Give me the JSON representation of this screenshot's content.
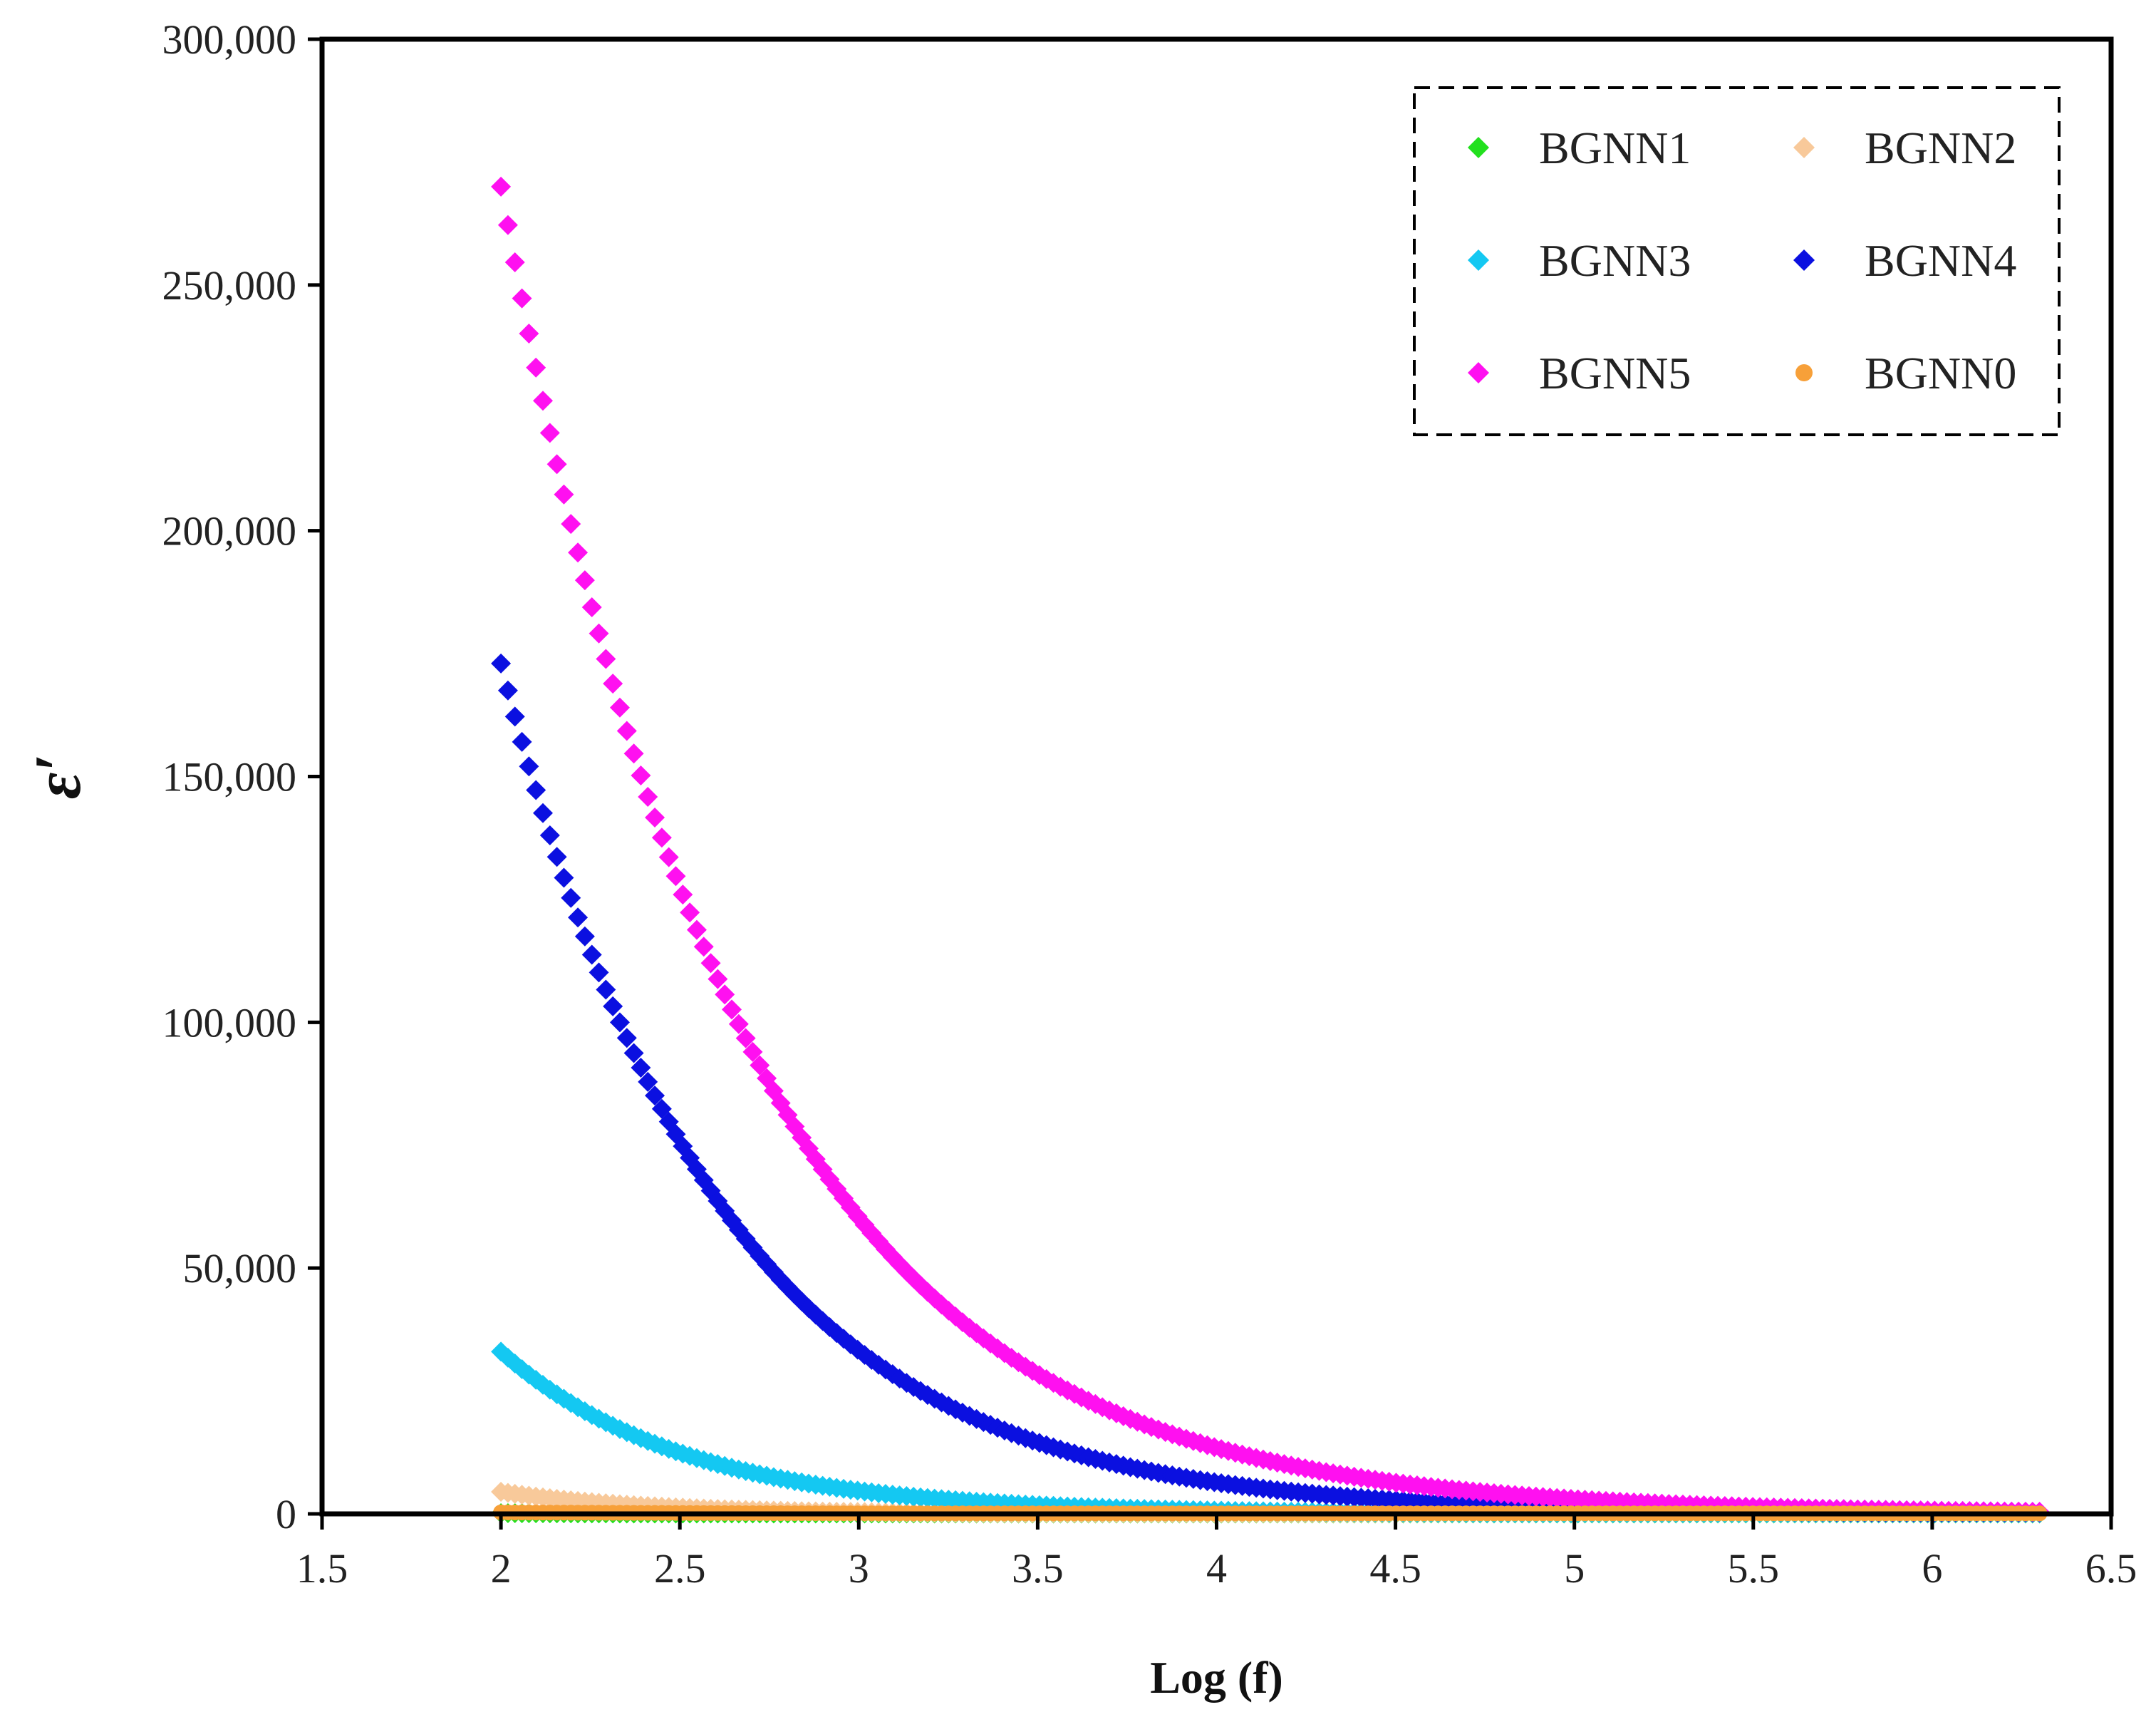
{
  "chart_data": {
    "type": "scatter",
    "title": "",
    "xlabel": "Log (f)",
    "ylabel": "ε′",
    "xlim": [
      1.5,
      6.5
    ],
    "ylim": [
      0,
      300000
    ],
    "x_ticks": [
      "1.5",
      "2",
      "2.5",
      "3",
      "3.5",
      "4",
      "4.5",
      "5",
      "5.5",
      "6",
      "6.5"
    ],
    "y_ticks": [
      "0",
      "50,000",
      "100,000",
      "150,000",
      "200,000",
      "250,000",
      "300,000"
    ],
    "grid": false,
    "legend_position": "top-right",
    "x_range": [
      2.0,
      6.3
    ],
    "series": [
      {
        "name": "BGNN1",
        "color": "#22e01e",
        "marker": "diamond",
        "x_start": 2.0,
        "x_end": 6.3,
        "start_value": 150,
        "decay_per_decade": 2.0,
        "floor": 80
      },
      {
        "name": "BGNN2",
        "color": "#f8c99a",
        "marker": "diamond",
        "x_start": 2.0,
        "x_end": 6.3,
        "start_value": 4500,
        "decay_per_decade": 2.5,
        "floor": 150
      },
      {
        "name": "BGNN3",
        "color": "#14c8f2",
        "marker": "diamond",
        "x_start": 2.0,
        "x_end": 6.3,
        "start_value": 33000,
        "decay_per_decade": 1.95,
        "floor": 150
      },
      {
        "name": "BGNN4",
        "color": "#0b10e0",
        "marker": "diamond",
        "x_start": 2.0,
        "x_end": 6.3,
        "start_value": 173000,
        "decay_per_decade": 1.65,
        "floor": 300
      },
      {
        "name": "BGNN5",
        "color": "#ff10f0",
        "marker": "diamond",
        "x_start": 2.0,
        "x_end": 6.3,
        "start_value": 270000,
        "decay_per_decade": 1.5,
        "floor": 300
      },
      {
        "name": "BGNN0",
        "color": "#f7a039",
        "marker": "circle",
        "x_start": 2.0,
        "x_end": 6.3,
        "start_value": 300,
        "decay_per_decade": 1.0,
        "floor": 100
      }
    ],
    "legend_order": [
      "BGNN1",
      "BGNN2",
      "BGNN3",
      "BGNN4",
      "BGNN5",
      "BGNN0"
    ]
  }
}
